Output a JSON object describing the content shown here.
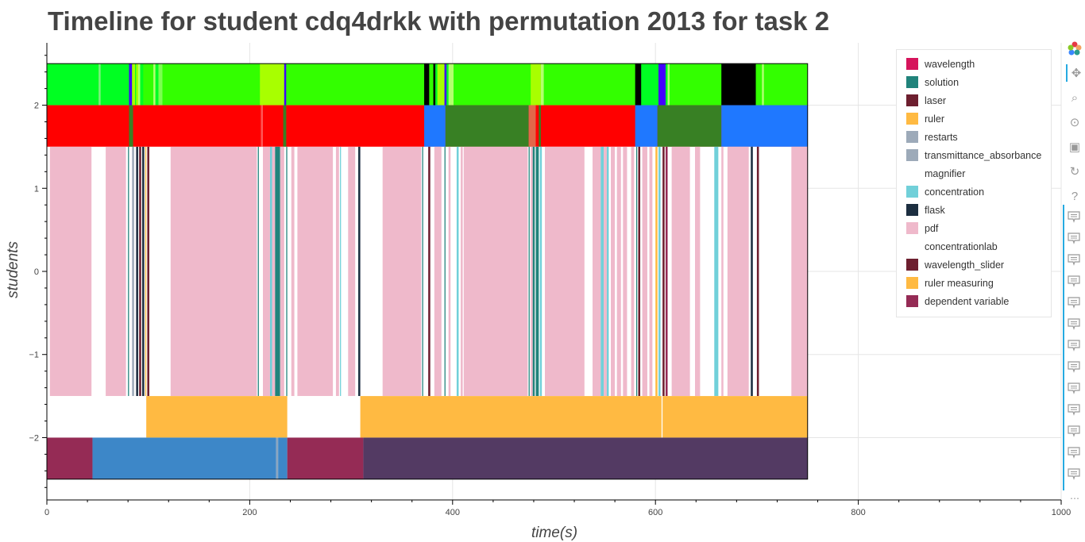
{
  "page": {
    "title": "Timeline for student cdq4drkk with permutation 2013 for task 2"
  },
  "colors": {
    "grid": "#e5e5e5",
    "axis": "#000000",
    "tool_active": "#26aae1",
    "tool_icon": "#999999"
  },
  "legend": [
    {
      "label": "wavelength",
      "color": "#d6145b"
    },
    {
      "label": "solution",
      "color": "#21837b"
    },
    {
      "label": "laser",
      "color": "#6d1f2f"
    },
    {
      "label": "ruler",
      "color": "#ffba42"
    },
    {
      "label": "restarts",
      "color": "#9daab9"
    },
    {
      "label": "transmittance_absorbance",
      "color": "#9daab9"
    },
    {
      "label": "magnifier",
      "color": "#ffffff"
    },
    {
      "label": "concentration",
      "color": "#71d0d9"
    },
    {
      "label": "flask",
      "color": "#1c2e40"
    },
    {
      "label": "pdf",
      "color": "#efb9cb"
    },
    {
      "label": "concentrationlab",
      "color": "#ffffff"
    },
    {
      "label": "wavelength_slider",
      "color": "#6d1f2f"
    },
    {
      "label": "ruler measuring",
      "color": "#ffba42"
    },
    {
      "label": "dependent variable",
      "color": "#952b55"
    }
  ],
  "toolbar": {
    "tools": [
      {
        "name": "bokeh-logo-icon",
        "glyph": ""
      },
      {
        "name": "pan-icon",
        "glyph": "✥",
        "active": true
      },
      {
        "name": "box-zoom-icon",
        "glyph": "⌕"
      },
      {
        "name": "wheel-zoom-icon",
        "glyph": "⊙"
      },
      {
        "name": "save-icon",
        "glyph": "▣"
      },
      {
        "name": "reset-icon",
        "glyph": "↻"
      },
      {
        "name": "help-icon",
        "glyph": "?"
      }
    ],
    "hover_tool_count": 13,
    "more_glyph": "⋯"
  },
  "chart_data": {
    "type": "timeline",
    "xlabel": "time(s)",
    "ylabel": "students",
    "xlim": [
      0,
      1000
    ],
    "ylim": [
      -2.75,
      2.75
    ],
    "x_ticks": [
      0,
      200,
      400,
      600,
      800,
      1000
    ],
    "x_tick_labels": [
      "0",
      "200",
      "400",
      "600",
      "800",
      "1000"
    ],
    "y_ticks": [
      -2,
      -1,
      0,
      1,
      2
    ],
    "y_tick_labels": [
      "−2",
      "−1",
      "0",
      "1",
      "2"
    ],
    "grid": true,
    "plot_end_time": 750,
    "rows": [
      {
        "y_range": [
          2.0,
          2.5
        ],
        "background": "#00ff22",
        "segments": [
          {
            "start": 51,
            "end": 53,
            "color": "#7cf07c"
          },
          {
            "start": 81,
            "end": 84,
            "color": "#4400ff"
          },
          {
            "start": 84,
            "end": 87,
            "color": "#a8ff00"
          },
          {
            "start": 88,
            "end": 90,
            "color": "#a8ff00"
          },
          {
            "start": 90,
            "end": 92,
            "color": "#b4ff6e"
          },
          {
            "start": 95,
            "end": 105,
            "color": "#33ff00"
          },
          {
            "start": 105,
            "end": 107,
            "color": "#b4ff6e"
          },
          {
            "start": 110,
            "end": 114,
            "color": "#7cff50"
          },
          {
            "start": 114,
            "end": 210,
            "color": "#33ff00"
          },
          {
            "start": 210,
            "end": 234,
            "color": "#a8ff00"
          },
          {
            "start": 234,
            "end": 236,
            "color": "#4400ff"
          },
          {
            "start": 236,
            "end": 372,
            "color": "#33ff00"
          },
          {
            "start": 372,
            "end": 377,
            "color": "#000000"
          },
          {
            "start": 377,
            "end": 381,
            "color": "#33ff00"
          },
          {
            "start": 381,
            "end": 383,
            "color": "#000000"
          },
          {
            "start": 385,
            "end": 392,
            "color": "#a8ff00"
          },
          {
            "start": 392,
            "end": 394,
            "color": "#4400ff"
          },
          {
            "start": 396,
            "end": 401,
            "color": "#b4ff6e"
          },
          {
            "start": 401,
            "end": 477,
            "color": "#33ff00"
          },
          {
            "start": 477,
            "end": 487,
            "color": "#a8ff00"
          },
          {
            "start": 487,
            "end": 490,
            "color": "#b4ff6e"
          },
          {
            "start": 490,
            "end": 580,
            "color": "#33ff00"
          },
          {
            "start": 580,
            "end": 586,
            "color": "#000000"
          },
          {
            "start": 586,
            "end": 602,
            "color": "#00ff22"
          },
          {
            "start": 603,
            "end": 610,
            "color": "#4400ff"
          },
          {
            "start": 612,
            "end": 614,
            "color": "#b4ff6e"
          },
          {
            "start": 614,
            "end": 665,
            "color": "#33ff00"
          },
          {
            "start": 665,
            "end": 699,
            "color": "#000000"
          },
          {
            "start": 699,
            "end": 705,
            "color": "#33ff00"
          },
          {
            "start": 705,
            "end": 707,
            "color": "#b4ff6e"
          },
          {
            "start": 707,
            "end": 750,
            "color": "#33ff00"
          }
        ]
      },
      {
        "y_range": [
          1.5,
          2.0
        ],
        "background": "#ff0000",
        "segments": [
          {
            "start": 81,
            "end": 85,
            "color": "#388024"
          },
          {
            "start": 211,
            "end": 213,
            "color": "#ff5555"
          },
          {
            "start": 233,
            "end": 236,
            "color": "#388024"
          },
          {
            "start": 372,
            "end": 393,
            "color": "#1f78ff"
          },
          {
            "start": 393,
            "end": 475,
            "color": "#388024"
          },
          {
            "start": 475,
            "end": 482,
            "color": "#e2674a"
          },
          {
            "start": 485,
            "end": 487,
            "color": "#388024"
          },
          {
            "start": 580,
            "end": 602,
            "color": "#1f78ff"
          },
          {
            "start": 602,
            "end": 665,
            "color": "#388024"
          },
          {
            "start": 665,
            "end": 750,
            "color": "#1f78ff"
          }
        ]
      },
      {
        "y_range": [
          -1.5,
          1.5
        ],
        "background": "#ffffff",
        "segments": [
          {
            "start": 3,
            "end": 44,
            "color": "#efb9cb"
          },
          {
            "start": 58,
            "end": 78,
            "color": "#efb9cb"
          },
          {
            "start": 80,
            "end": 81,
            "color": "#21837b"
          },
          {
            "start": 84,
            "end": 86,
            "color": "#9daab9"
          },
          {
            "start": 88,
            "end": 90,
            "color": "#1c2e40"
          },
          {
            "start": 91,
            "end": 93,
            "color": "#6d1f2f"
          },
          {
            "start": 94,
            "end": 96,
            "color": "#1c2e40"
          },
          {
            "start": 97,
            "end": 98,
            "color": "#ffba42"
          },
          {
            "start": 99,
            "end": 101,
            "color": "#6d1f2f"
          },
          {
            "start": 122,
            "end": 207,
            "color": "#efb9cb"
          },
          {
            "start": 208,
            "end": 209,
            "color": "#21837b"
          },
          {
            "start": 213,
            "end": 220,
            "color": "#efb9cb"
          },
          {
            "start": 220,
            "end": 222,
            "color": "#71d0d9"
          },
          {
            "start": 222,
            "end": 225,
            "color": "#efb9cb"
          },
          {
            "start": 225,
            "end": 230,
            "color": "#21837b"
          },
          {
            "start": 230,
            "end": 234,
            "color": "#efb9cb"
          },
          {
            "start": 236,
            "end": 237,
            "color": "#21837b"
          },
          {
            "start": 241,
            "end": 244,
            "color": "#efb9cb"
          },
          {
            "start": 247,
            "end": 282,
            "color": "#efb9cb"
          },
          {
            "start": 285,
            "end": 288,
            "color": "#efb9cb"
          },
          {
            "start": 289,
            "end": 290,
            "color": "#71d0d9"
          },
          {
            "start": 297,
            "end": 304,
            "color": "#efb9cb"
          },
          {
            "start": 307,
            "end": 309,
            "color": "#1c2e40"
          },
          {
            "start": 331,
            "end": 369,
            "color": "#efb9cb"
          },
          {
            "start": 370,
            "end": 371,
            "color": "#21837b"
          },
          {
            "start": 376,
            "end": 378,
            "color": "#6d1f2f"
          },
          {
            "start": 382,
            "end": 389,
            "color": "#efb9cb"
          },
          {
            "start": 392,
            "end": 393,
            "color": "#21837b"
          },
          {
            "start": 396,
            "end": 398,
            "color": "#efb9cb"
          },
          {
            "start": 404,
            "end": 406,
            "color": "#71d0d9"
          },
          {
            "start": 408,
            "end": 410,
            "color": "#efb9cb"
          },
          {
            "start": 411,
            "end": 474,
            "color": "#efb9cb"
          },
          {
            "start": 475,
            "end": 476,
            "color": "#21837b"
          },
          {
            "start": 477,
            "end": 479,
            "color": "#efb9cb"
          },
          {
            "start": 479,
            "end": 481,
            "color": "#21837b"
          },
          {
            "start": 482,
            "end": 485,
            "color": "#21837b"
          },
          {
            "start": 486,
            "end": 488,
            "color": "#71d0d9"
          },
          {
            "start": 491,
            "end": 530,
            "color": "#efb9cb"
          },
          {
            "start": 538,
            "end": 546,
            "color": "#efb9cb"
          },
          {
            "start": 546,
            "end": 549,
            "color": "#71d0d9"
          },
          {
            "start": 549,
            "end": 552,
            "color": "#efb9cb"
          },
          {
            "start": 552,
            "end": 554,
            "color": "#71d0d9"
          },
          {
            "start": 556,
            "end": 560,
            "color": "#efb9cb"
          },
          {
            "start": 562,
            "end": 566,
            "color": "#efb9cb"
          },
          {
            "start": 568,
            "end": 572,
            "color": "#efb9cb"
          },
          {
            "start": 576,
            "end": 579,
            "color": "#efb9cb"
          },
          {
            "start": 581,
            "end": 582,
            "color": "#21837b"
          },
          {
            "start": 583,
            "end": 585,
            "color": "#6d1f2f"
          },
          {
            "start": 587,
            "end": 592,
            "color": "#efb9cb"
          },
          {
            "start": 594,
            "end": 597,
            "color": "#efb9cb"
          },
          {
            "start": 600,
            "end": 602,
            "color": "#ffba42"
          },
          {
            "start": 603,
            "end": 605,
            "color": "#71d0d9"
          },
          {
            "start": 607,
            "end": 609,
            "color": "#6d1f2f"
          },
          {
            "start": 610,
            "end": 612,
            "color": "#952b55"
          },
          {
            "start": 616,
            "end": 634,
            "color": "#efb9cb"
          },
          {
            "start": 639,
            "end": 644,
            "color": "#efb9cb"
          },
          {
            "start": 658,
            "end": 662,
            "color": "#71d0d9"
          },
          {
            "start": 665,
            "end": 667,
            "color": "#efb9cb"
          },
          {
            "start": 671,
            "end": 692,
            "color": "#efb9cb"
          },
          {
            "start": 694,
            "end": 696,
            "color": "#1c2e40"
          },
          {
            "start": 700,
            "end": 702,
            "color": "#6d1f2f"
          },
          {
            "start": 734,
            "end": 750,
            "color": "#efb9cb"
          }
        ]
      },
      {
        "y_range": [
          -2.0,
          -1.5
        ],
        "background": "#ffffff",
        "segments": [
          {
            "start": 98,
            "end": 237,
            "color": "#ffba42"
          },
          {
            "start": 309,
            "end": 606,
            "color": "#ffba42"
          },
          {
            "start": 607,
            "end": 750,
            "color": "#ffba42"
          }
        ]
      },
      {
        "y_range": [
          -2.5,
          -2.0
        ],
        "background": "#ffffff",
        "segments": [
          {
            "start": 0,
            "end": 45,
            "color": "#952b55"
          },
          {
            "start": 45,
            "end": 226,
            "color": "#3d87c8"
          },
          {
            "start": 226,
            "end": 228,
            "color": "#8ba6c0"
          },
          {
            "start": 228,
            "end": 237,
            "color": "#3d87c8"
          },
          {
            "start": 237,
            "end": 312,
            "color": "#952b55"
          },
          {
            "start": 312,
            "end": 750,
            "color": "#533a63"
          }
        ]
      }
    ]
  }
}
